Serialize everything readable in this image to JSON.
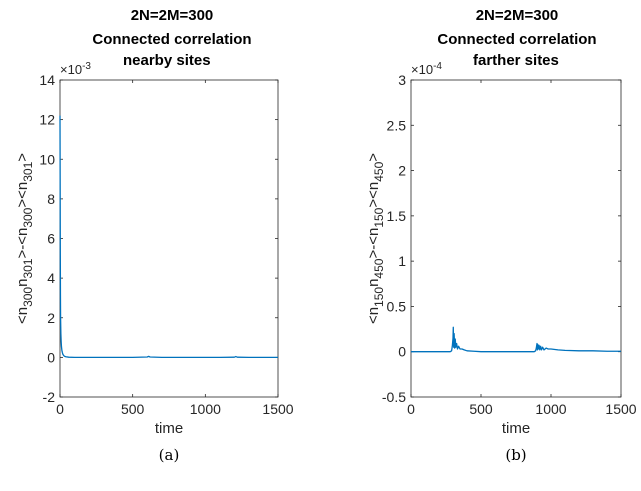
{
  "chart_data": [
    {
      "type": "line",
      "title": [
        "2N=2M=300",
        "Connected correlation",
        "nearby sites"
      ],
      "xlabel": "time",
      "ylabel": "<n300n301>-<n300><n301>",
      "ylabel_parts": [
        {
          "t": "<n",
          "sub": false
        },
        {
          "t": "300",
          "sub": true
        },
        {
          "t": "n",
          "sub": false
        },
        {
          "t": "301",
          "sub": true
        },
        {
          "t": ">-<n",
          "sub": false
        },
        {
          "t": "300",
          "sub": true
        },
        {
          "t": "><n",
          "sub": false
        },
        {
          "t": "301",
          "sub": true
        },
        {
          "t": ">",
          "sub": false
        }
      ],
      "multiplier": "×10",
      "multiplier_exp": "-3",
      "xlim": [
        0,
        1500
      ],
      "ylim": [
        -2,
        14
      ],
      "xticks": [
        0,
        500,
        1000,
        1500
      ],
      "yticks": [
        -2,
        0,
        2,
        4,
        6,
        8,
        10,
        12,
        14
      ],
      "grid": false,
      "caption": "(a)",
      "color": "#0072bd",
      "x": [
        0,
        1,
        2,
        3,
        4,
        6,
        8,
        10,
        13,
        16,
        20,
        25,
        30,
        40,
        60,
        100,
        200,
        300,
        400,
        500,
        600,
        610,
        620,
        700,
        800,
        900,
        1000,
        1100,
        1200,
        1210,
        1220,
        1300,
        1400,
        1500
      ],
      "y": [
        12.2,
        9.0,
        5.5,
        3.2,
        2.0,
        1.2,
        0.8,
        0.55,
        0.35,
        0.25,
        0.15,
        0.1,
        0.06,
        0.03,
        0.01,
        0.0,
        0.0,
        0.0,
        0.0,
        0.0,
        0.02,
        0.05,
        0.02,
        0.0,
        0.0,
        0.0,
        0.0,
        0.0,
        0.01,
        0.04,
        0.01,
        0.0,
        0.0,
        0.0
      ]
    },
    {
      "type": "line",
      "title": [
        "2N=2M=300",
        "Connected correlation",
        "farther sites"
      ],
      "xlabel": "time",
      "ylabel": "<n150n450>-<n150><n450>",
      "ylabel_parts": [
        {
          "t": "<n",
          "sub": false
        },
        {
          "t": "150",
          "sub": true
        },
        {
          "t": "n",
          "sub": false
        },
        {
          "t": "450",
          "sub": true
        },
        {
          "t": ">-<n",
          "sub": false
        },
        {
          "t": "150",
          "sub": true
        },
        {
          "t": "><n",
          "sub": false
        },
        {
          "t": "450",
          "sub": true
        },
        {
          "t": ">",
          "sub": false
        }
      ],
      "multiplier": "×10",
      "multiplier_exp": "-4",
      "xlim": [
        0,
        1500
      ],
      "ylim": [
        -0.5,
        3
      ],
      "xticks": [
        0,
        500,
        1000,
        1500
      ],
      "yticks": [
        -0.5,
        0,
        0.5,
        1,
        1.5,
        2,
        2.5,
        3
      ],
      "grid": false,
      "caption": "(b)",
      "color": "#0072bd",
      "x": [
        0,
        100,
        200,
        280,
        290,
        295,
        300,
        302,
        305,
        308,
        312,
        316,
        320,
        326,
        332,
        340,
        350,
        365,
        380,
        400,
        450,
        500,
        600,
        700,
        800,
        880,
        890,
        895,
        900,
        903,
        906,
        910,
        915,
        920,
        926,
        932,
        940,
        950,
        965,
        980,
        1000,
        1050,
        1100,
        1200,
        1300,
        1400,
        1500
      ],
      "y": [
        0,
        0,
        0,
        0,
        0.01,
        0.06,
        0.15,
        0.27,
        0.05,
        0.2,
        0.04,
        0.14,
        0.05,
        0.09,
        0.03,
        0.06,
        0.03,
        0.03,
        0.02,
        0.01,
        0.005,
        0,
        0,
        0,
        0,
        0,
        0.01,
        0.04,
        0.09,
        0.02,
        0.08,
        0.03,
        0.07,
        0.02,
        0.06,
        0.02,
        0.05,
        0.02,
        0.04,
        0.03,
        0.03,
        0.02,
        0.015,
        0.01,
        0.01,
        0.005,
        0.005
      ]
    }
  ]
}
